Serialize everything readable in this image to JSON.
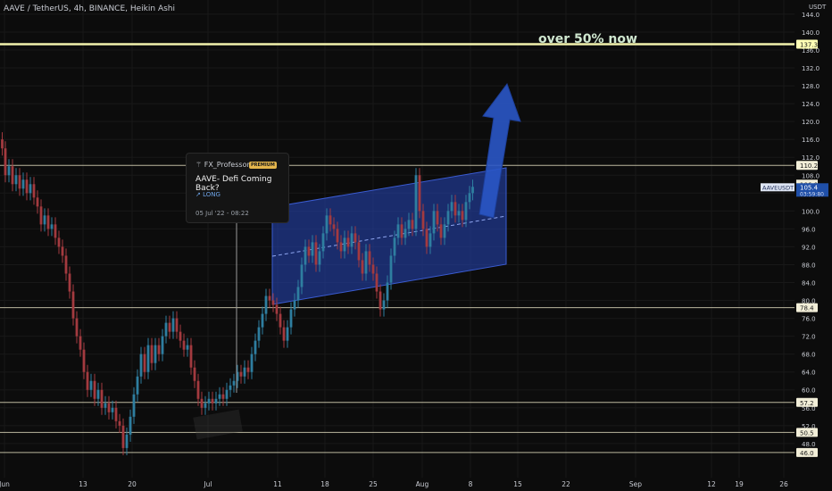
{
  "header": {
    "title": "AAVE / TetherUS, 4h, BINANCE, Heikin Ashi"
  },
  "annotation": {
    "text": "over 50% now"
  },
  "idea_card": {
    "author": "FX_Professor",
    "badge": "PREMIUM",
    "title": "AAVE- Defi Coming Back?",
    "direction": "LONG",
    "timestamp": "05 Jul '22 - 08:22"
  },
  "colors": {
    "background": "#0c0c0c",
    "up": "#2e7ea0",
    "down": "#a33a3f",
    "channel": "#2440a8",
    "level_line": "#e7e2c3",
    "highlight_line": "#ffffb5",
    "arrow": "#2a57c6"
  },
  "chart_data": {
    "type": "candlestick",
    "title": "AAVE / TetherUS, 4h, BINANCE, Heikin Ashi",
    "y_axis_unit": "USDT",
    "y_ticks": [
      "48.0",
      "52.0",
      "56.0",
      "60.0",
      "64.0",
      "68.0",
      "72.0",
      "76.0",
      "80.0",
      "84.0",
      "88.0",
      "92.0",
      "96.0",
      "100.0",
      "104.0",
      "108.0",
      "112.0",
      "116.0",
      "120.0",
      "124.0",
      "128.0",
      "132.0",
      "136.0",
      "140.0",
      "144.0"
    ],
    "x_ticks": [
      "Jun",
      "13",
      "20",
      "Jul",
      "11",
      "18",
      "25",
      "Aug",
      "8",
      "15",
      "22",
      "Sep",
      "12",
      "19",
      "26"
    ],
    "ylim": [
      45.5,
      148
    ],
    "horizontal_levels": [
      "137.3",
      "110.2",
      "78.4",
      "57.2",
      "50.5",
      "46.0"
    ],
    "current_price_label": "AAVEUSDT",
    "current_price": "105.4",
    "countdown": "03:59:80",
    "price_106_label": "106.0",
    "price_path_close": [
      [
        1.0,
        116.0
      ],
      [
        4.0,
        114.0
      ],
      [
        8.0,
        108.0
      ],
      [
        12.0,
        110.0
      ],
      [
        16.0,
        106.0
      ],
      [
        20.0,
        108.0
      ],
      [
        24.0,
        105.0
      ],
      [
        28.0,
        107.0
      ],
      [
        32.0,
        104.0
      ],
      [
        36.0,
        106.0
      ],
      [
        40.0,
        103.0
      ],
      [
        44.0,
        101.0
      ],
      [
        48.0,
        97.0
      ],
      [
        52.0,
        99.0
      ],
      [
        56.0,
        96.0
      ],
      [
        60.0,
        97.0
      ],
      [
        64.0,
        94.0
      ],
      [
        68.0,
        92.0
      ],
      [
        72.0,
        90.0
      ],
      [
        76.0,
        86.0
      ],
      [
        80.0,
        82.0
      ],
      [
        84.0,
        76.0
      ],
      [
        88.0,
        72.0
      ],
      [
        92.0,
        69.0
      ],
      [
        96.0,
        64.0
      ],
      [
        100.0,
        60.0
      ],
      [
        104.0,
        62.0
      ],
      [
        108.0,
        58.0
      ],
      [
        112.0,
        60.0
      ],
      [
        116.0,
        56.0
      ],
      [
        120.0,
        57.0
      ],
      [
        124.0,
        55.0
      ],
      [
        128.0,
        56.0
      ],
      [
        132.0,
        53.0
      ],
      [
        136.0,
        52.0
      ],
      [
        140.0,
        47.0
      ],
      [
        144.0,
        50.0
      ],
      [
        148.0,
        54.0
      ],
      [
        152.0,
        59.0
      ],
      [
        156.0,
        63.0
      ],
      [
        160.0,
        68.0
      ],
      [
        164.0,
        64.0
      ],
      [
        168.0,
        70.0
      ],
      [
        172.0,
        66.0
      ],
      [
        176.0,
        70.0
      ],
      [
        180.0,
        68.0
      ],
      [
        184.0,
        72.0
      ],
      [
        188.0,
        75.0
      ],
      [
        192.0,
        73.0
      ],
      [
        196.0,
        76.0
      ],
      [
        200.0,
        73.0
      ],
      [
        204.0,
        71.0
      ],
      [
        208.0,
        69.0
      ],
      [
        212.0,
        70.0
      ],
      [
        216.0,
        65.0
      ],
      [
        220.0,
        62.0
      ],
      [
        224.0,
        58.0
      ],
      [
        228.0,
        56.0
      ],
      [
        232.0,
        57.0
      ],
      [
        236.0,
        58.0
      ],
      [
        240.0,
        57.0
      ],
      [
        244.0,
        58.0
      ],
      [
        248.0,
        59.0
      ],
      [
        252.0,
        58.0
      ],
      [
        256.0,
        60.0
      ],
      [
        260.0,
        61.0
      ],
      [
        264.0,
        62.0
      ],
      [
        268.0,
        64.0
      ],
      [
        272.0,
        63.0
      ],
      [
        276.0,
        65.0
      ],
      [
        280.0,
        64.0
      ],
      [
        284.0,
        68.0
      ],
      [
        288.0,
        71.0
      ],
      [
        292.0,
        74.0
      ],
      [
        296.0,
        77.0
      ],
      [
        300.0,
        81.0
      ],
      [
        304.0,
        80.0
      ],
      [
        308.0,
        79.0
      ],
      [
        312.0,
        77.0
      ],
      [
        316.0,
        74.0
      ],
      [
        320.0,
        71.0
      ],
      [
        324.0,
        74.0
      ],
      [
        328.0,
        78.0
      ],
      [
        332.0,
        80.0
      ],
      [
        336.0,
        83.0
      ],
      [
        340.0,
        88.0
      ],
      [
        344.0,
        92.0
      ],
      [
        348.0,
        90.0
      ],
      [
        352.0,
        93.0
      ],
      [
        356.0,
        88.0
      ],
      [
        360.0,
        91.0
      ],
      [
        364.0,
        95.0
      ],
      [
        368.0,
        99.0
      ],
      [
        372.0,
        97.0
      ],
      [
        376.0,
        96.0
      ],
      [
        380.0,
        93.0
      ],
      [
        384.0,
        91.0
      ],
      [
        388.0,
        94.0
      ],
      [
        392.0,
        92.0
      ],
      [
        396.0,
        95.0
      ],
      [
        400.0,
        93.0
      ],
      [
        404.0,
        89.0
      ],
      [
        408.0,
        86.0
      ],
      [
        412.0,
        91.0
      ],
      [
        416.0,
        88.0
      ],
      [
        420.0,
        86.0
      ],
      [
        424.0,
        82.0
      ],
      [
        428.0,
        78.0
      ],
      [
        432.0,
        80.0
      ],
      [
        436.0,
        84.0
      ],
      [
        440.0,
        90.0
      ],
      [
        444.0,
        94.0
      ],
      [
        448.0,
        97.0
      ],
      [
        452.0,
        94.0
      ],
      [
        456.0,
        96.0
      ],
      [
        460.0,
        98.0
      ],
      [
        464.0,
        96.0
      ],
      [
        468.0,
        108.0
      ],
      [
        472.0,
        100.0
      ],
      [
        476.0,
        96.0
      ],
      [
        480.0,
        92.0
      ],
      [
        484.0,
        95.0
      ],
      [
        488.0,
        100.0
      ],
      [
        492.0,
        97.0
      ],
      [
        496.0,
        94.0
      ],
      [
        500.0,
        97.0
      ],
      [
        504.0,
        100.0
      ],
      [
        508.0,
        102.0
      ],
      [
        512.0,
        99.0
      ],
      [
        516.0,
        100.0
      ],
      [
        520.0,
        98.0
      ],
      [
        524.0,
        102.0
      ],
      [
        528.0,
        104.0
      ],
      [
        531.0,
        105.4
      ]
    ]
  }
}
